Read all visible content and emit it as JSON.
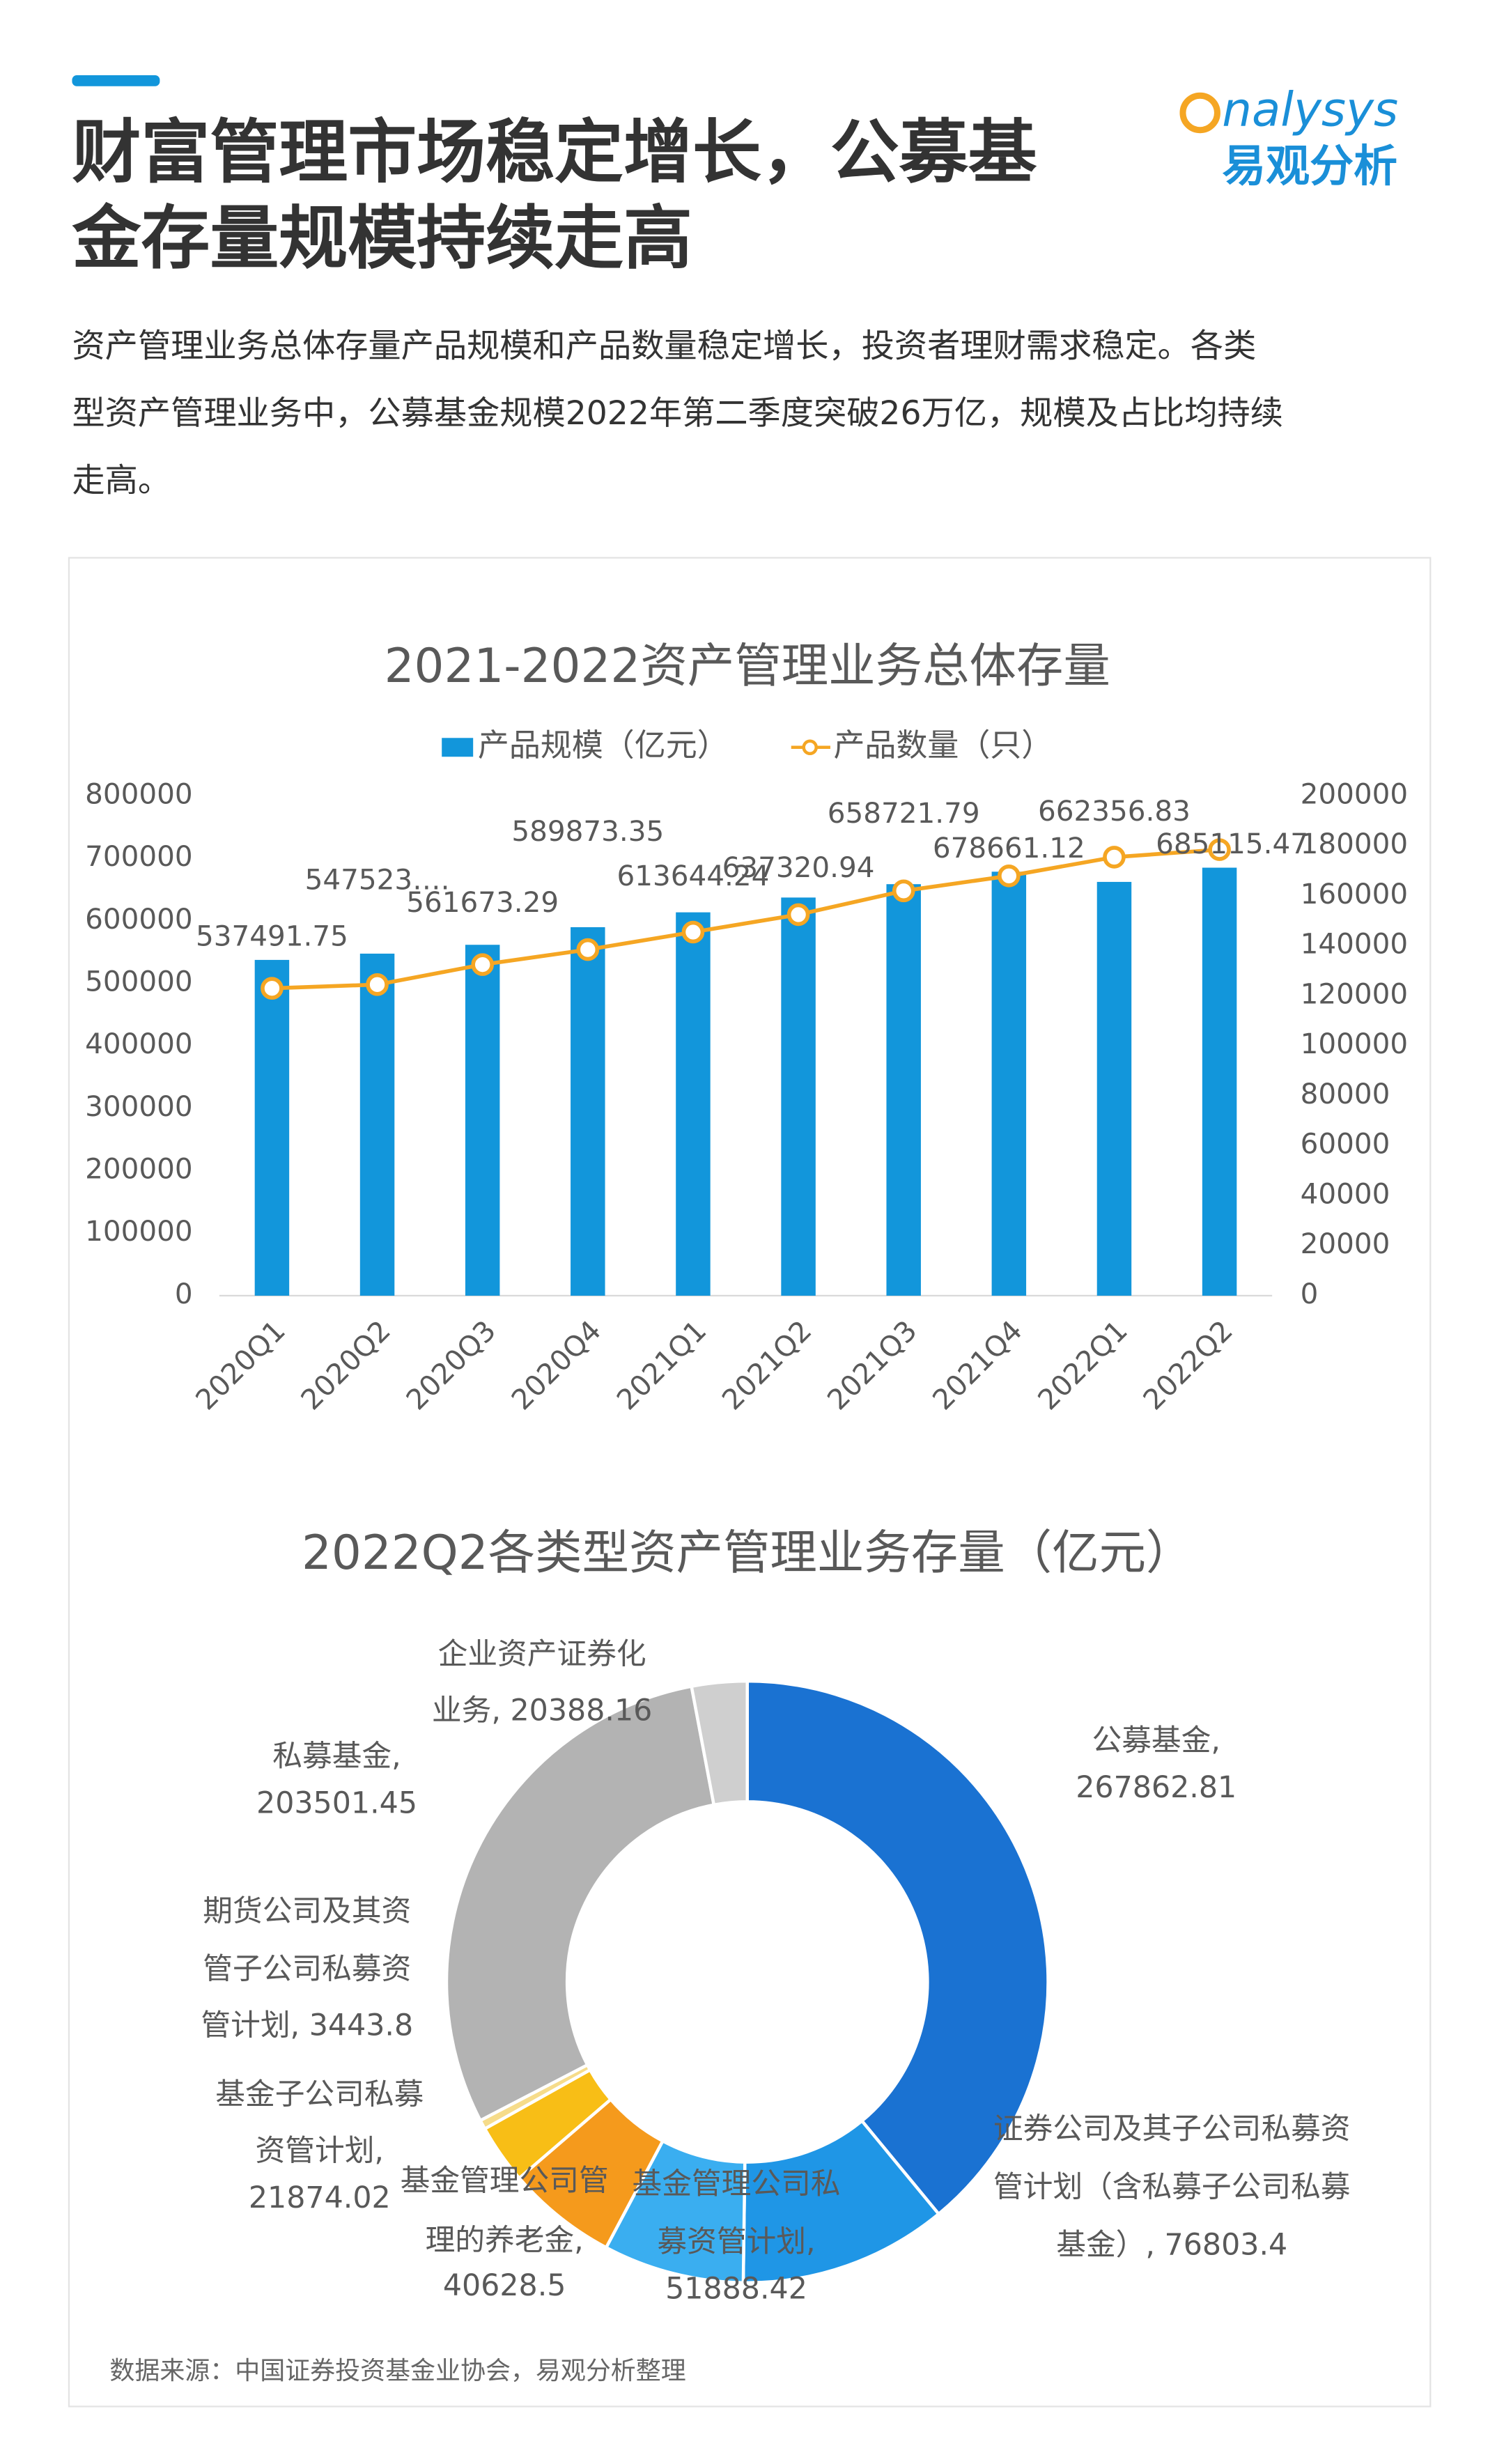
{
  "header": {
    "title_lines": [
      "财富管理市场稳定增长，公募基",
      "金存量规模持续走高"
    ],
    "logo": [
      "nalysys",
      "易观分析"
    ],
    "paragraph": [
      "资产管理业务总体存量产品规模和产品数量稳定增长，投资者理财需求稳定。各类",
      "型资产管理业务中，公募基金规模2022年第二季度突破26万亿，规模及占比均持续",
      "走高。"
    ]
  },
  "chart_data": [
    {
      "type": "bar-line",
      "title": "2021-2022资产管理业务总体存量",
      "categories": [
        "2020Q1",
        "2020Q2",
        "2020Q3",
        "2020Q4",
        "2021Q1",
        "2021Q2",
        "2021Q3",
        "2021Q4",
        "2022Q1",
        "2022Q2"
      ],
      "series": [
        {
          "name": "产品规模（亿元）",
          "color": "#1296db",
          "values": [
            537491.75,
            547523,
            561673.29,
            589873.35,
            613644.24,
            637320.94,
            658721.79,
            678661.12,
            662356.83,
            685115.47
          ],
          "value_labels": [
            "537491.75",
            "547523….",
            "561673.29",
            "589873.35",
            "613644.24",
            "637320.94",
            "658721.79",
            "678661.12",
            "662356.83",
            "685115.47"
          ]
        },
        {
          "name": "产品数量（只）",
          "color": "#f5a623",
          "axis": "y2",
          "values": [
            123000,
            124500,
            132500,
            138500,
            145500,
            152500,
            162000,
            168000,
            175500,
            178500
          ]
        }
      ],
      "ylim": [
        0,
        800000
      ],
      "yticks": [
        0,
        100000,
        200000,
        300000,
        400000,
        500000,
        600000,
        700000,
        800000
      ],
      "y2lim": [
        0,
        200000
      ],
      "y2ticks": [
        0,
        20000,
        40000,
        60000,
        80000,
        100000,
        120000,
        140000,
        160000,
        180000,
        200000
      ],
      "legend": "top"
    },
    {
      "type": "donut",
      "title": "2022Q2各类型资产管理业务存量（亿元）",
      "values": [
        267862.81,
        76803.4,
        51888.42,
        40628.5,
        21874.02,
        3443.8,
        203501.45,
        20388.16
      ],
      "colors": [
        "#1a72d2",
        "#1f96e6",
        "#3aaef0",
        "#f59a1c",
        "#f8be16",
        "#f6dc8a",
        "#b3b3b3",
        "#cfcfcf"
      ],
      "value_labels": [
        [
          "公募基金,",
          "267862.81"
        ],
        [
          "证券公司及其子公司私募资",
          "管计划（含私募子公司私募",
          "基金）, 76803.4"
        ],
        [
          "基金管理公司私",
          "募资管计划,",
          "51888.42"
        ],
        [
          "基金管理公司管",
          "理的养老金,",
          "40628.5"
        ],
        [
          "基金子公司私募",
          "资管计划,",
          "21874.02"
        ],
        [
          "期货公司及其资",
          "管子公司私募资",
          "管计划, 3443.8"
        ],
        [
          "私募基金,",
          "203501.45"
        ],
        [
          "企业资产证券化",
          "业务, 20388.16"
        ]
      ]
    }
  ],
  "source": "数据来源：中国证券投资基金业协会，易观分析整理"
}
